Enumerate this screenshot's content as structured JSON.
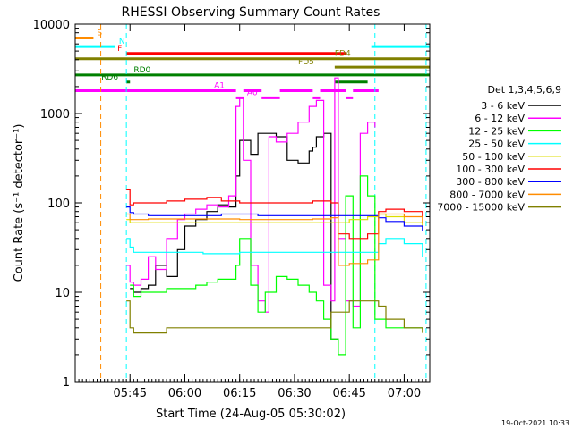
{
  "chart_data": {
    "type": "line",
    "title": "RHESSI Observing Summary Count Rates",
    "xlabel": "Start Time (24-Aug-05 05:30:02)",
    "ylabel": "Count Rate (s⁻¹ detector⁻¹)",
    "y_scale": "log",
    "ylim": [
      1,
      10000
    ],
    "xlim": [
      "05:30",
      "07:07"
    ],
    "x_ticks": [
      "05:45",
      "06:00",
      "06:15",
      "06:30",
      "06:45",
      "07:00"
    ],
    "y_ticks": [
      "1",
      "10",
      "100",
      "1000",
      "10000"
    ],
    "timestamp": "19-Oct-2021 10:33",
    "legend": {
      "position": "right",
      "title": "Det 1,3,4,5,6,9",
      "entries": [
        {
          "label": "3 - 6 keV",
          "color": "#000000"
        },
        {
          "label": "6 - 12 keV",
          "color": "#ff00ff"
        },
        {
          "label": "12 - 25 keV",
          "color": "#00ff00"
        },
        {
          "label": "25 - 50 keV",
          "color": "#00ffff"
        },
        {
          "label": "50 - 100 keV",
          "color": "#dddd00"
        },
        {
          "label": "100 - 300 keV",
          "color": "#ff0000"
        },
        {
          "label": "300 - 800 keV",
          "color": "#0000ff"
        },
        {
          "label": "800 - 7000 keV",
          "color": "#ff8c00"
        },
        {
          "label": "7000 - 15000 keV",
          "color": "#808000"
        }
      ]
    },
    "flag_bars": [
      {
        "label": "S",
        "color": "#ff8c00",
        "y": 7000,
        "segments": [
          [
            "05:30",
            "05:35"
          ]
        ]
      },
      {
        "label": "N",
        "color": "#00ffff",
        "y": 5600,
        "segments": [
          [
            "05:30",
            "05:41"
          ],
          [
            "06:51",
            "07:07"
          ]
        ]
      },
      {
        "label": "F",
        "color": "#ff0000",
        "y": 4700,
        "segments": [
          [
            "05:44",
            "06:44"
          ]
        ]
      },
      {
        "label": "FD4",
        "color": "#808000",
        "y": 4100,
        "segments": [
          [
            "05:30",
            "07:07"
          ]
        ]
      },
      {
        "label": "FD5",
        "color": "#808000",
        "y": 3300,
        "segments": [
          [
            "06:41",
            "07:07"
          ]
        ]
      },
      {
        "label": "RD0",
        "color": "#008000",
        "y": 2700,
        "segments": [
          [
            "05:30",
            "07:07"
          ]
        ]
      },
      {
        "label": "RD6",
        "color": "#008000",
        "y": 2250,
        "segments": [
          [
            "05:44",
            "05:45"
          ],
          [
            "06:41",
            "06:50"
          ]
        ]
      },
      {
        "label": "A1",
        "color": "#ff00ff",
        "y": 1800,
        "segments": [
          [
            "05:30",
            "06:14"
          ],
          [
            "06:16",
            "06:21"
          ],
          [
            "06:26",
            "06:35"
          ],
          [
            "06:37",
            "06:44"
          ],
          [
            "06:46",
            "06:53"
          ]
        ]
      },
      {
        "label": "A0",
        "color": "#ff00ff",
        "y": 1500,
        "segments": [
          [
            "06:14",
            "06:16"
          ],
          [
            "06:21",
            "06:26"
          ],
          [
            "06:35",
            "06:37"
          ],
          [
            "06:44",
            "06:46"
          ]
        ]
      }
    ],
    "vertical_markers": [
      {
        "x": "05:37",
        "color": "#ff8c00",
        "style": "dashed"
      },
      {
        "x": "05:44",
        "color": "#00ffff",
        "style": "dashed"
      },
      {
        "x": "06:52",
        "color": "#00ffff",
        "style": "dashed"
      },
      {
        "x": "07:06",
        "color": "#00ffff",
        "style": "dashed"
      }
    ],
    "series": [
      {
        "name": "3 - 6 keV",
        "color": "#000000",
        "x": [
          "05:45",
          "05:46",
          "05:48",
          "05:50",
          "05:52",
          "05:55",
          "05:58",
          "06:00",
          "06:03",
          "06:06",
          "06:09",
          "06:12",
          "06:14",
          "06:15",
          "06:18",
          "06:20",
          "06:25",
          "06:28",
          "06:31",
          "06:34",
          "06:35",
          "06:36",
          "06:38",
          "06:40",
          "06:42"
        ],
        "y": [
          11,
          10,
          11,
          12,
          20,
          15,
          30,
          55,
          65,
          80,
          95,
          90,
          200,
          500,
          350,
          600,
          550,
          300,
          280,
          380,
          420,
          550,
          600,
          3,
          2
        ]
      },
      {
        "name": "6 - 12 keV",
        "color": "#ff00ff",
        "x": [
          "05:44",
          "05:45",
          "05:46",
          "05:48",
          "05:50",
          "05:52",
          "05:55",
          "05:58",
          "06:00",
          "06:03",
          "06:06",
          "06:09",
          "06:12",
          "06:14",
          "06:15",
          "06:16",
          "06:18",
          "06:20",
          "06:22",
          "06:23",
          "06:25",
          "06:28",
          "06:31",
          "06:34",
          "06:36",
          "06:38",
          "06:40",
          "06:41",
          "06:42",
          "06:44",
          "06:46",
          "06:48",
          "06:50",
          "06:52"
        ],
        "y": [
          20,
          13,
          12,
          14,
          25,
          18,
          40,
          65,
          75,
          85,
          95,
          90,
          120,
          1200,
          1500,
          300,
          20,
          8,
          6,
          550,
          480,
          600,
          800,
          1200,
          1400,
          12,
          8,
          2500,
          40,
          8,
          7,
          600,
          800,
          700
        ]
      },
      {
        "name": "12 - 25 keV",
        "color": "#00ff00",
        "x": [
          "05:45",
          "05:46",
          "05:48",
          "05:50",
          "05:55",
          "06:00",
          "06:03",
          "06:06",
          "06:09",
          "06:12",
          "06:14",
          "06:15",
          "06:18",
          "06:20",
          "06:22",
          "06:25",
          "06:28",
          "06:31",
          "06:34",
          "06:36",
          "06:38",
          "06:40",
          "06:42",
          "06:44",
          "06:46",
          "06:48",
          "06:50",
          "06:52",
          "06:55",
          "07:00",
          "07:05"
        ],
        "y": [
          12,
          9,
          10,
          10,
          11,
          11,
          12,
          13,
          14,
          14,
          20,
          40,
          12,
          6,
          10,
          15,
          14,
          12,
          10,
          8,
          5,
          3,
          2,
          120,
          4,
          200,
          120,
          5,
          4,
          4,
          4
        ]
      },
      {
        "name": "25 - 50 keV",
        "color": "#00ffff",
        "x": [
          "05:44",
          "05:45",
          "05:46",
          "05:50",
          "05:55",
          "06:00",
          "06:05",
          "06:10",
          "06:15",
          "06:20",
          "06:25",
          "06:30",
          "06:35",
          "06:40",
          "06:45",
          "06:50",
          "06:53",
          "06:55",
          "07:00",
          "07:05"
        ],
        "y": [
          40,
          32,
          28,
          28,
          28,
          28,
          27,
          27,
          28,
          28,
          28,
          28,
          28,
          28,
          28,
          28,
          35,
          40,
          35,
          25
        ]
      },
      {
        "name": "50 - 100 keV",
        "color": "#dddd00",
        "x": [
          "05:44",
          "05:45",
          "05:46",
          "05:50",
          "05:55",
          "06:00",
          "06:05",
          "06:10",
          "06:15",
          "06:20",
          "06:25",
          "06:30",
          "06:35",
          "06:40",
          "06:45",
          "06:50",
          "06:53",
          "06:55",
          "07:00",
          "07:05"
        ],
        "y": [
          65,
          60,
          60,
          60,
          60,
          60,
          60,
          60,
          60,
          60,
          60,
          60,
          60,
          60,
          65,
          70,
          75,
          70,
          60,
          55
        ]
      },
      {
        "name": "100 - 300 keV",
        "color": "#ff0000",
        "x": [
          "05:44",
          "05:45",
          "05:46",
          "05:50",
          "05:55",
          "06:00",
          "06:03",
          "06:06",
          "06:10",
          "06:15",
          "06:20",
          "06:25",
          "06:30",
          "06:35",
          "06:40",
          "06:42",
          "06:45",
          "06:50",
          "06:53",
          "06:55",
          "07:00",
          "07:05"
        ],
        "y": [
          140,
          95,
          100,
          100,
          105,
          110,
          110,
          115,
          105,
          100,
          100,
          100,
          100,
          105,
          100,
          45,
          40,
          45,
          80,
          85,
          80,
          70
        ]
      },
      {
        "name": "300 - 800 keV",
        "color": "#0000ff",
        "x": [
          "05:44",
          "05:45",
          "05:46",
          "05:50",
          "05:55",
          "06:00",
          "06:05",
          "06:10",
          "06:15",
          "06:20",
          "06:25",
          "06:30",
          "06:35",
          "06:40",
          "06:45",
          "06:50",
          "06:53",
          "06:55",
          "07:00",
          "07:05"
        ],
        "y": [
          90,
          78,
          75,
          72,
          72,
          72,
          72,
          75,
          75,
          72,
          72,
          72,
          72,
          72,
          72,
          72,
          68,
          62,
          55,
          48
        ]
      },
      {
        "name": "800 - 7000 keV",
        "color": "#ff8c00",
        "x": [
          "05:44",
          "05:45",
          "05:46",
          "05:50",
          "05:55",
          "06:00",
          "06:05",
          "06:10",
          "06:15",
          "06:20",
          "06:25",
          "06:30",
          "06:35",
          "06:40",
          "06:42",
          "06:45",
          "06:50",
          "06:53",
          "06:55",
          "07:00",
          "07:05"
        ],
        "y": [
          75,
          65,
          65,
          66,
          66,
          66,
          66,
          66,
          65,
          65,
          65,
          65,
          66,
          68,
          20,
          21,
          23,
          75,
          75,
          70,
          60
        ]
      },
      {
        "name": "7000 - 15000 keV",
        "color": "#808000",
        "x": [
          "05:44",
          "05:45",
          "05:46",
          "05:50",
          "05:55",
          "06:00",
          "06:05",
          "06:10",
          "06:15",
          "06:20",
          "06:25",
          "06:30",
          "06:35",
          "06:40",
          "06:45",
          "06:50",
          "06:53",
          "06:55",
          "07:00",
          "07:05"
        ],
        "y": [
          8,
          4,
          3.5,
          3.5,
          4,
          4,
          4,
          4,
          4,
          4,
          4,
          4,
          4,
          6,
          8,
          8,
          7,
          5,
          4,
          3.5
        ]
      }
    ]
  }
}
